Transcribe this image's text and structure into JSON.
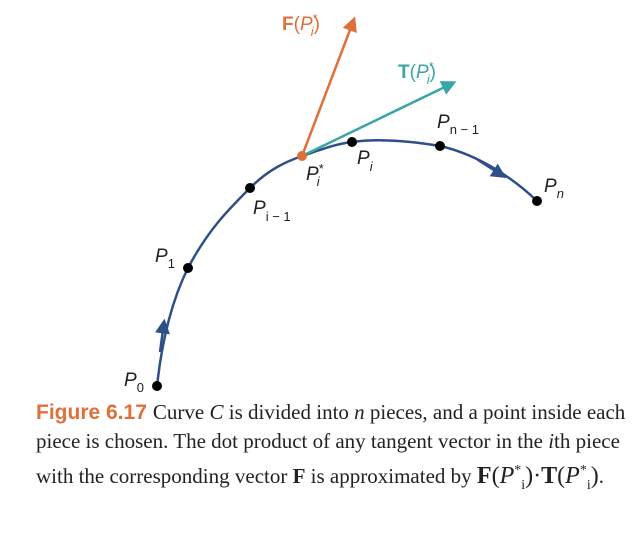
{
  "colors": {
    "curve": "#2e4f87",
    "force": "#e0703a",
    "tangent": "#3aa5a8",
    "caption_label": "#e0703a"
  },
  "labels": {
    "force": {
      "letter": "F",
      "open": "(",
      "P": "P",
      "sup": "*",
      "sub": "i",
      "close": ")"
    },
    "tangent": {
      "letter": "T",
      "open": "(",
      "P": "P",
      "sup": "*",
      "sub": "i",
      "close": ")"
    },
    "p0": {
      "P": "P",
      "sub": "0"
    },
    "p1": {
      "P": "P",
      "sub": "1"
    },
    "pim1": {
      "P": "P",
      "sub": "i − 1"
    },
    "pstar": {
      "P": "P",
      "sup": "*",
      "sub": "i"
    },
    "pi": {
      "P": "P",
      "sub": "i"
    },
    "pnm1": {
      "P": "P",
      "sub": "n − 1"
    },
    "pn": {
      "P": "P",
      "sub": "n"
    }
  },
  "caption": {
    "figure_label": "Figure 6.17",
    "text_1": "Curve ",
    "C": "C",
    "text_2": " is divided into ",
    "n": "n",
    "text_3": " pieces, and a point inside each piece is chosen. The dot product of any tangent vector in the ",
    "i": "i",
    "text_4": "th piece with the corresponding vector ",
    "F": "F",
    "text_5": " is approximated by ",
    "formula": {
      "F": "F",
      "T": "T",
      "P": "P",
      "sup": "*",
      "sub": "i",
      "dot": "·"
    },
    "end": "."
  }
}
